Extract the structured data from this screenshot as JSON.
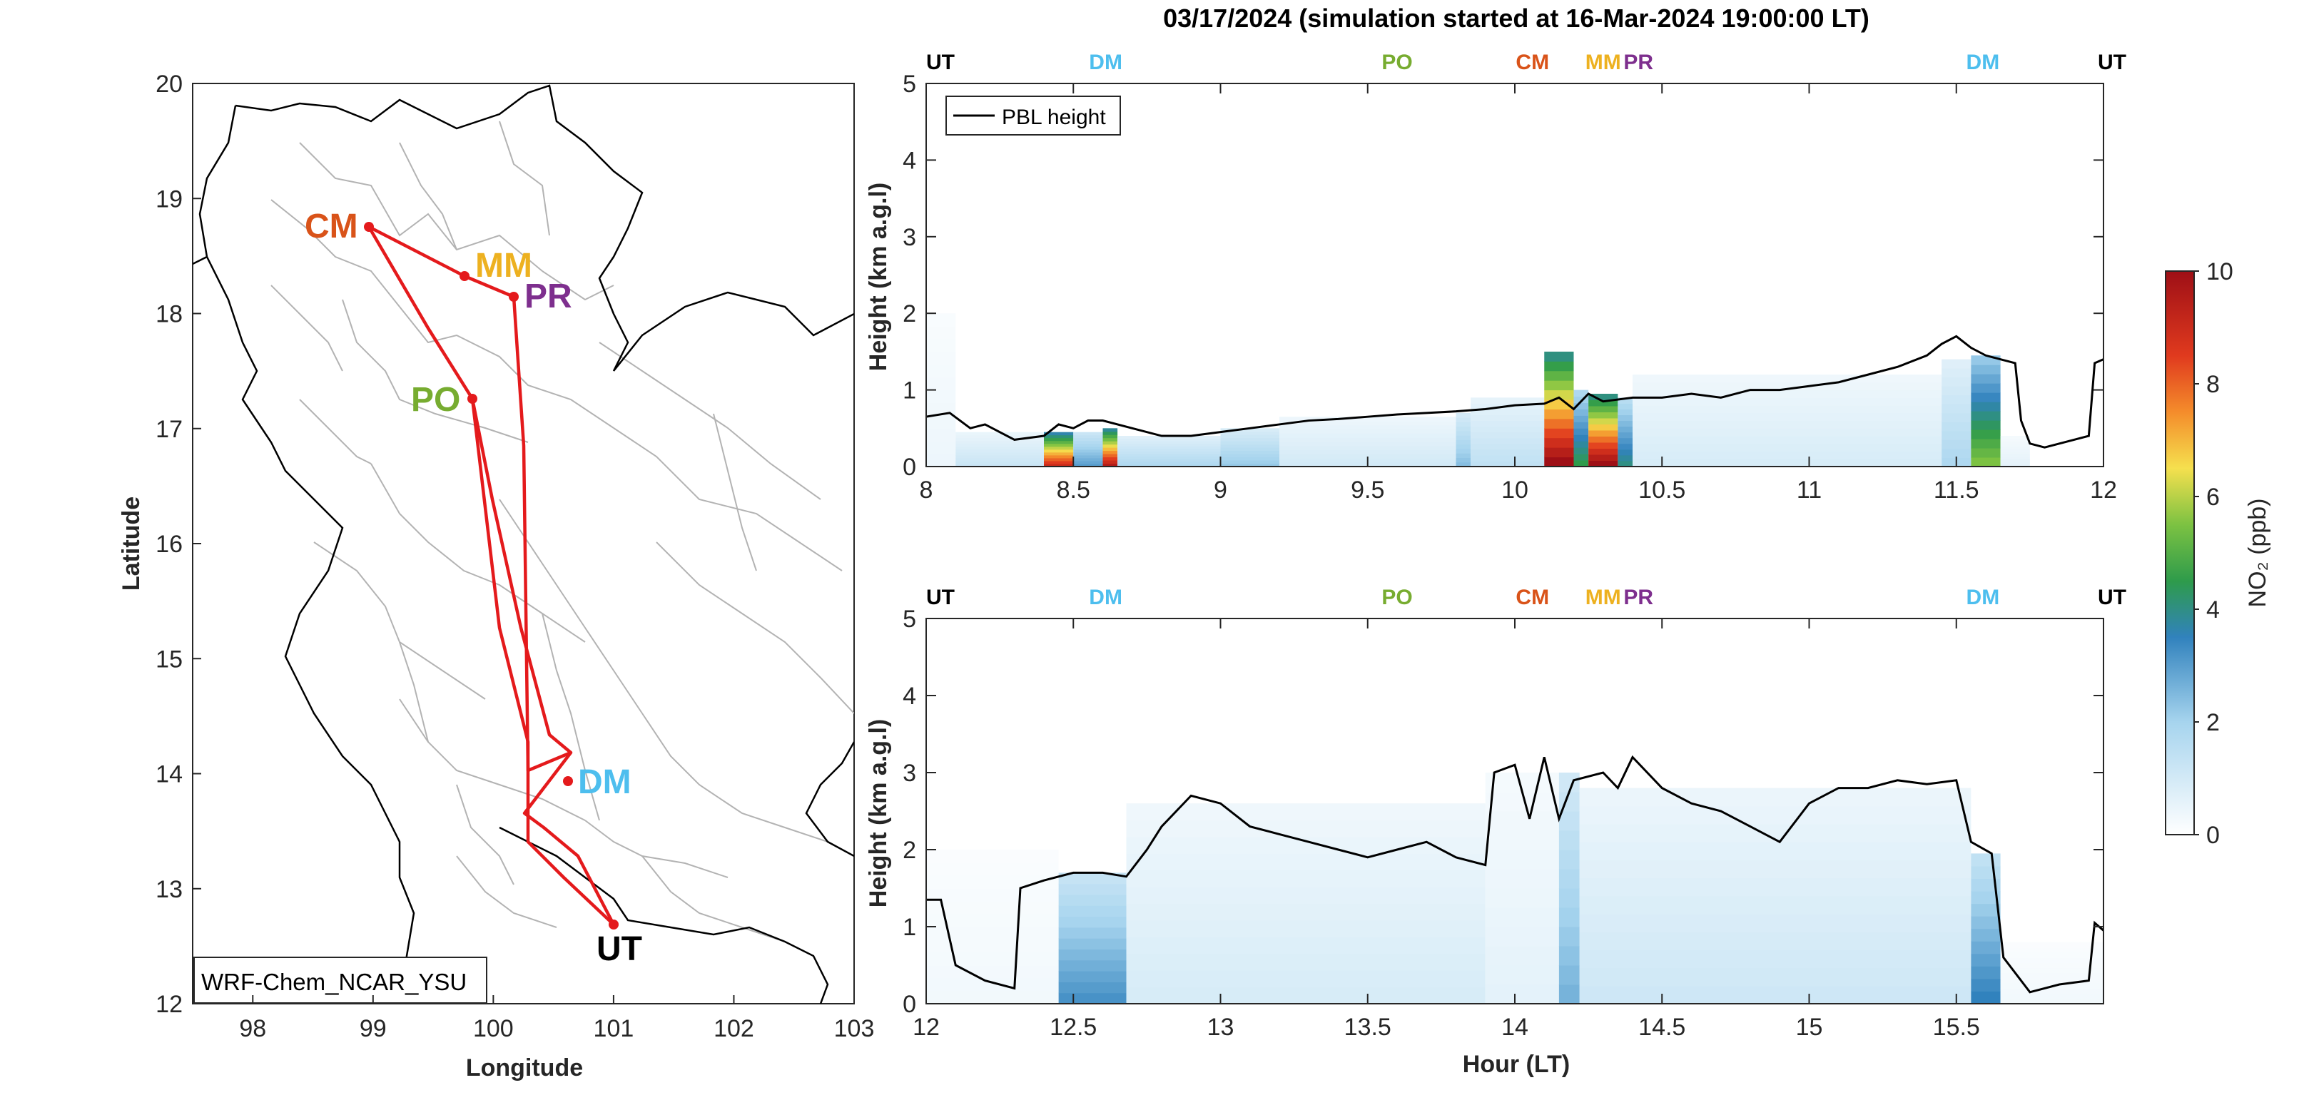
{
  "figure": {
    "title": "03/17/2024 (simulation started at 16-Mar-2024 19:00:00 LT)",
    "colors": {
      "track": "#e41a1c",
      "boundary": "#b3b3b3",
      "coast": "#000000",
      "pbl": "#000000"
    }
  },
  "map": {
    "xlabel": "Longitude",
    "ylabel": "Latitude",
    "x_ticks": [
      "98",
      "99",
      "100",
      "101",
      "102",
      "103"
    ],
    "y_ticks": [
      "12",
      "13",
      "14",
      "15",
      "16",
      "17",
      "18",
      "19",
      "20"
    ],
    "model_label": "WRF-Chem_NCAR_YSU",
    "sites": [
      {
        "code": "CM",
        "lon": 98.97,
        "lat": 18.78,
        "color": "#d95319"
      },
      {
        "code": "MM",
        "lon": 99.81,
        "lat": 18.32,
        "color": "#edb120"
      },
      {
        "code": "PR",
        "lon": 100.21,
        "lat": 18.15,
        "color": "#7e2f8e"
      },
      {
        "code": "PO",
        "lon": 99.83,
        "lat": 17.27,
        "color": "#77ac30"
      },
      {
        "code": "DM",
        "lon": 100.61,
        "lat": 13.92,
        "color": "#4dbeee"
      },
      {
        "code": "UT",
        "lon": 101.01,
        "lat": 12.67,
        "color": "#000000"
      }
    ]
  },
  "colorbar": {
    "label": "NO₂ (ppb)",
    "ticks": [
      "0",
      "2",
      "4",
      "6",
      "8",
      "10"
    ]
  },
  "legend": {
    "label": "PBL height"
  },
  "chart_data": [
    {
      "type": "heatmap",
      "panel": "top",
      "ylabel": "Height (km a.g.l)",
      "xlim": [
        8,
        12
      ],
      "ylim": [
        0,
        5
      ],
      "x_ticks": [
        "8",
        "8.5",
        "9",
        "9.5",
        "10",
        "10.5",
        "11",
        "11.5",
        "12"
      ],
      "y_ticks": [
        "0",
        "1",
        "2",
        "3",
        "4",
        "5"
      ],
      "site_markers": [
        {
          "code": "UT",
          "hour": 8.0,
          "color": "#000000"
        },
        {
          "code": "DM",
          "hour": 8.61,
          "color": "#4dbeee"
        },
        {
          "code": "PO",
          "hour": 9.6,
          "color": "#77ac30"
        },
        {
          "code": "CM",
          "hour": 10.06,
          "color": "#d95319"
        },
        {
          "code": "MM",
          "hour": 10.3,
          "color": "#edb120"
        },
        {
          "code": "PR",
          "hour": 10.42,
          "color": "#7e2f8e"
        },
        {
          "code": "DM",
          "hour": 11.59,
          "color": "#4dbeee"
        },
        {
          "code": "UT",
          "hour": 11.97,
          "color": "#000000"
        }
      ],
      "pbl_height_km": [
        [
          8.0,
          0.65
        ],
        [
          8.08,
          0.7
        ],
        [
          8.15,
          0.5
        ],
        [
          8.2,
          0.55
        ],
        [
          8.3,
          0.35
        ],
        [
          8.4,
          0.4
        ],
        [
          8.45,
          0.55
        ],
        [
          8.5,
          0.5
        ],
        [
          8.55,
          0.6
        ],
        [
          8.6,
          0.6
        ],
        [
          8.7,
          0.5
        ],
        [
          8.8,
          0.4
        ],
        [
          8.9,
          0.4
        ],
        [
          9.0,
          0.45
        ],
        [
          9.1,
          0.5
        ],
        [
          9.2,
          0.55
        ],
        [
          9.3,
          0.6
        ],
        [
          9.4,
          0.62
        ],
        [
          9.5,
          0.65
        ],
        [
          9.6,
          0.68
        ],
        [
          9.7,
          0.7
        ],
        [
          9.8,
          0.72
        ],
        [
          9.9,
          0.75
        ],
        [
          10.0,
          0.8
        ],
        [
          10.1,
          0.82
        ],
        [
          10.15,
          0.9
        ],
        [
          10.2,
          0.75
        ],
        [
          10.25,
          0.95
        ],
        [
          10.3,
          0.85
        ],
        [
          10.4,
          0.9
        ],
        [
          10.5,
          0.9
        ],
        [
          10.6,
          0.95
        ],
        [
          10.7,
          0.9
        ],
        [
          10.8,
          1.0
        ],
        [
          10.9,
          1.0
        ],
        [
          11.0,
          1.05
        ],
        [
          11.1,
          1.1
        ],
        [
          11.2,
          1.2
        ],
        [
          11.3,
          1.3
        ],
        [
          11.4,
          1.45
        ],
        [
          11.45,
          1.6
        ],
        [
          11.5,
          1.7
        ],
        [
          11.55,
          1.55
        ],
        [
          11.6,
          1.45
        ],
        [
          11.65,
          1.4
        ],
        [
          11.7,
          1.35
        ],
        [
          11.72,
          0.6
        ],
        [
          11.75,
          0.3
        ],
        [
          11.8,
          0.25
        ],
        [
          11.9,
          0.35
        ],
        [
          11.95,
          0.4
        ],
        [
          11.97,
          1.35
        ],
        [
          12.0,
          1.4
        ]
      ],
      "no2_columns_ppb": [
        {
          "x0": 8.0,
          "x1": 8.1,
          "top_km": 2.0,
          "ppb": 0.4
        },
        {
          "x0": 8.1,
          "x1": 8.4,
          "top_km": 0.45,
          "ppb": 1.2
        },
        {
          "x0": 8.4,
          "x1": 8.5,
          "top_km": 0.45,
          "ppb": 9.0
        },
        {
          "x0": 8.5,
          "x1": 8.6,
          "top_km": 0.45,
          "ppb": 3.0
        },
        {
          "x0": 8.6,
          "x1": 8.65,
          "top_km": 0.5,
          "ppb": 9.5
        },
        {
          "x0": 8.65,
          "x1": 9.0,
          "top_km": 0.4,
          "ppb": 1.8
        },
        {
          "x0": 9.0,
          "x1": 9.2,
          "top_km": 0.5,
          "ppb": 2.2
        },
        {
          "x0": 9.2,
          "x1": 9.8,
          "top_km": 0.65,
          "ppb": 1.0
        },
        {
          "x0": 9.8,
          "x1": 9.85,
          "top_km": 0.7,
          "ppb": 2.4
        },
        {
          "x0": 9.85,
          "x1": 10.1,
          "top_km": 0.9,
          "ppb": 1.4
        },
        {
          "x0": 10.1,
          "x1": 10.2,
          "top_km": 1.5,
          "ppb": 10.0
        },
        {
          "x0": 10.2,
          "x1": 10.25,
          "top_km": 1.0,
          "ppb": 4.5
        },
        {
          "x0": 10.25,
          "x1": 10.35,
          "top_km": 0.95,
          "ppb": 10.0
        },
        {
          "x0": 10.35,
          "x1": 10.4,
          "top_km": 0.9,
          "ppb": 4.0
        },
        {
          "x0": 10.4,
          "x1": 11.45,
          "top_km": 1.2,
          "ppb": 0.9
        },
        {
          "x0": 11.45,
          "x1": 11.55,
          "top_km": 1.4,
          "ppb": 1.8
        },
        {
          "x0": 11.55,
          "x1": 11.65,
          "top_km": 1.45,
          "ppb": 5.5
        },
        {
          "x0": 11.65,
          "x1": 11.75,
          "top_km": 0.4,
          "ppb": 0.6
        }
      ]
    },
    {
      "type": "heatmap",
      "panel": "bottom",
      "ylabel": "Height (km a.g.l)",
      "xlabel": "Hour (LT)",
      "xlim": [
        12,
        16
      ],
      "ylim": [
        0,
        5
      ],
      "x_ticks": [
        "12",
        "12.5",
        "13",
        "13.5",
        "14",
        "14.5",
        "15",
        "15.5"
      ],
      "y_ticks": [
        "0",
        "1",
        "2",
        "3",
        "4",
        "5"
      ],
      "site_markers": [
        {
          "code": "UT",
          "hour": 12.0,
          "color": "#000000"
        },
        {
          "code": "DM",
          "hour": 12.61,
          "color": "#4dbeee"
        },
        {
          "code": "PO",
          "hour": 13.6,
          "color": "#77ac30"
        },
        {
          "code": "CM",
          "hour": 14.06,
          "color": "#d95319"
        },
        {
          "code": "MM",
          "hour": 14.3,
          "color": "#edb120"
        },
        {
          "code": "PR",
          "hour": 14.42,
          "color": "#7e2f8e"
        },
        {
          "code": "DM",
          "hour": 15.59,
          "color": "#4dbeee"
        },
        {
          "code": "UT",
          "hour": 15.97,
          "color": "#000000"
        }
      ],
      "pbl_height_km": [
        [
          12.0,
          1.35
        ],
        [
          12.05,
          1.35
        ],
        [
          12.1,
          0.5
        ],
        [
          12.2,
          0.3
        ],
        [
          12.3,
          0.2
        ],
        [
          12.32,
          1.5
        ],
        [
          12.4,
          1.6
        ],
        [
          12.5,
          1.7
        ],
        [
          12.6,
          1.7
        ],
        [
          12.68,
          1.65
        ],
        [
          12.75,
          2.0
        ],
        [
          12.8,
          2.3
        ],
        [
          12.9,
          2.7
        ],
        [
          13.0,
          2.6
        ],
        [
          13.1,
          2.3
        ],
        [
          13.2,
          2.2
        ],
        [
          13.3,
          2.1
        ],
        [
          13.4,
          2.0
        ],
        [
          13.5,
          1.9
        ],
        [
          13.6,
          2.0
        ],
        [
          13.7,
          2.1
        ],
        [
          13.8,
          1.9
        ],
        [
          13.9,
          1.8
        ],
        [
          13.93,
          3.0
        ],
        [
          14.0,
          3.1
        ],
        [
          14.05,
          2.4
        ],
        [
          14.1,
          3.2
        ],
        [
          14.15,
          2.4
        ],
        [
          14.2,
          2.9
        ],
        [
          14.3,
          3.0
        ],
        [
          14.35,
          2.8
        ],
        [
          14.4,
          3.2
        ],
        [
          14.5,
          2.8
        ],
        [
          14.6,
          2.6
        ],
        [
          14.7,
          2.5
        ],
        [
          14.8,
          2.3
        ],
        [
          14.9,
          2.1
        ],
        [
          15.0,
          2.6
        ],
        [
          15.1,
          2.8
        ],
        [
          15.2,
          2.8
        ],
        [
          15.3,
          2.9
        ],
        [
          15.4,
          2.85
        ],
        [
          15.5,
          2.9
        ],
        [
          15.55,
          2.1
        ],
        [
          15.62,
          1.95
        ],
        [
          15.66,
          0.6
        ],
        [
          15.75,
          0.15
        ],
        [
          15.85,
          0.25
        ],
        [
          15.95,
          0.3
        ],
        [
          15.97,
          1.05
        ],
        [
          16.0,
          0.95
        ]
      ],
      "no2_columns_ppb": [
        {
          "x0": 12.0,
          "x1": 12.45,
          "top_km": 2.0,
          "ppb": 0.3
        },
        {
          "x0": 12.45,
          "x1": 12.68,
          "top_km": 1.7,
          "ppb": 3.2
        },
        {
          "x0": 12.68,
          "x1": 13.9,
          "top_km": 2.6,
          "ppb": 0.9
        },
        {
          "x0": 13.9,
          "x1": 14.15,
          "top_km": 3.0,
          "ppb": 0.6
        },
        {
          "x0": 14.15,
          "x1": 14.22,
          "top_km": 3.0,
          "ppb": 2.6
        },
        {
          "x0": 14.22,
          "x1": 15.55,
          "top_km": 2.8,
          "ppb": 1.1
        },
        {
          "x0": 15.55,
          "x1": 15.65,
          "top_km": 1.95,
          "ppb": 3.5
        },
        {
          "x0": 15.65,
          "x1": 16.0,
          "top_km": 0.8,
          "ppb": 0.3
        }
      ]
    }
  ]
}
